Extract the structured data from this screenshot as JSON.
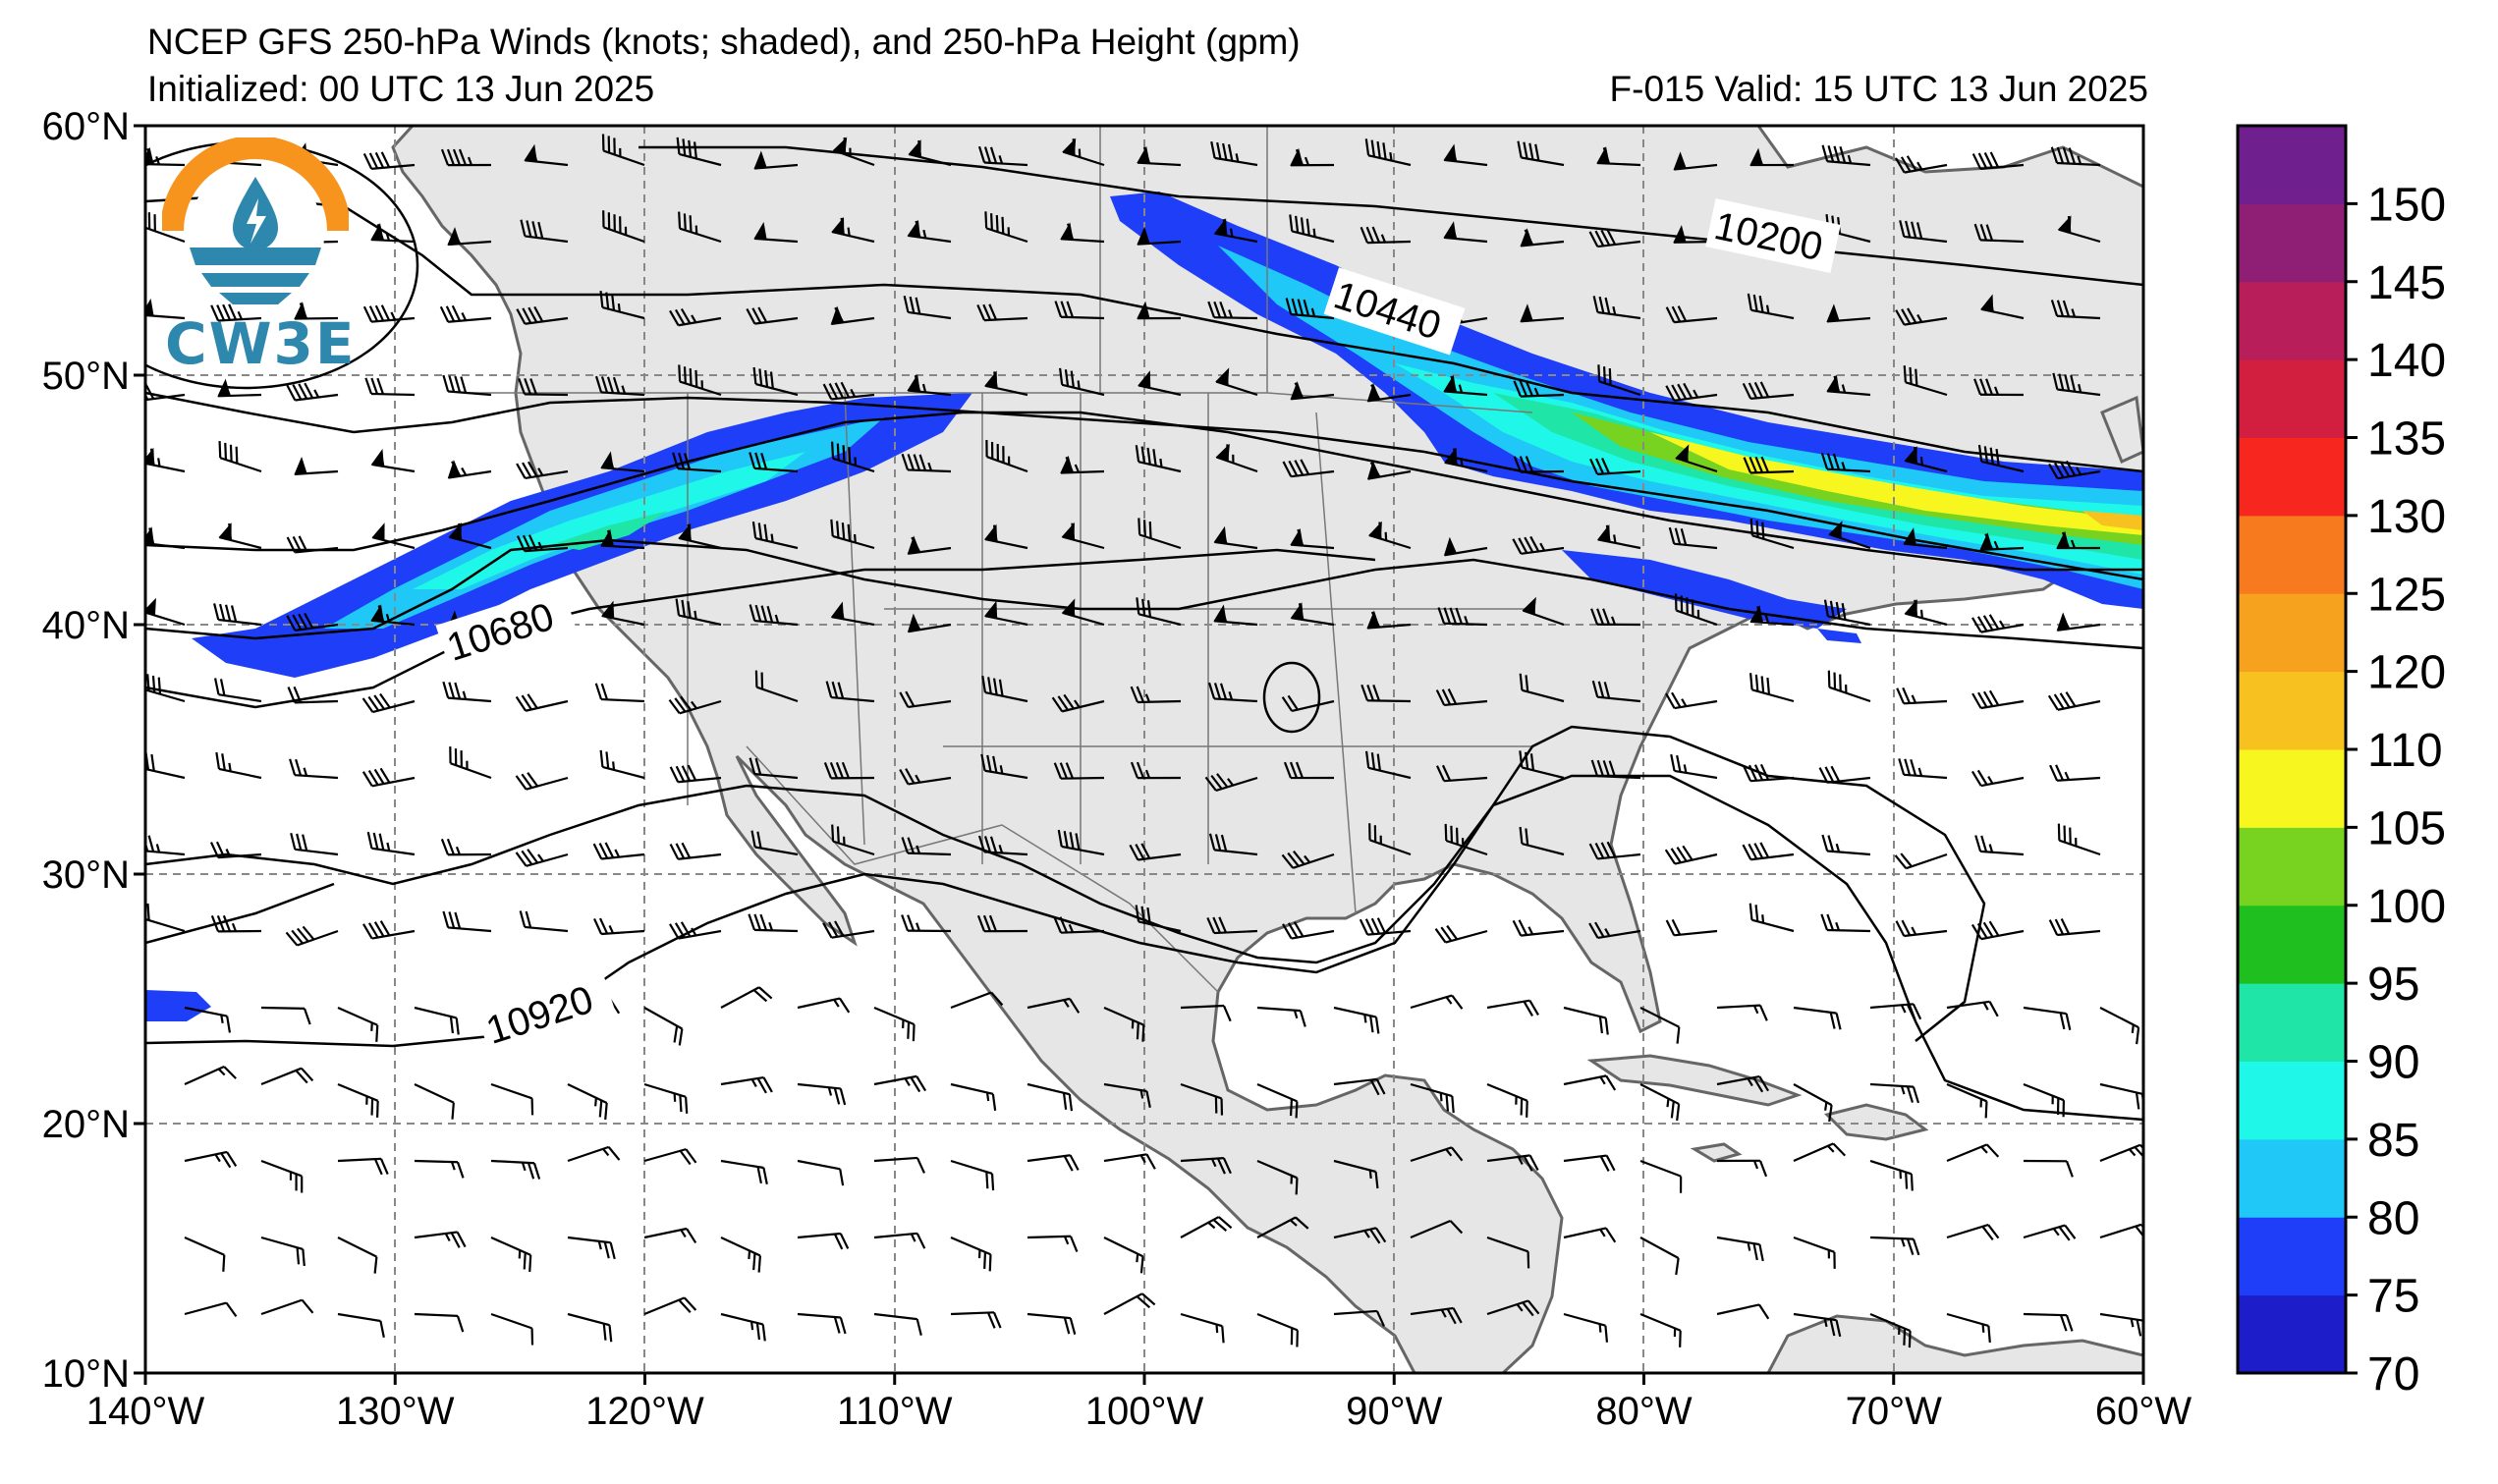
{
  "header": {
    "title": "NCEP GFS 250-hPa Winds (knots; shaded), and 250-hPa Height (gpm)",
    "init": "Initialized: 00 UTC 13 Jun 2025",
    "valid": "F-015  Valid: 15 UTC 13 Jun 2025"
  },
  "logo": {
    "text": "CW3E",
    "icon": "cw3e-sun-water-logo-icon"
  },
  "map": {
    "extent": {
      "lon": [
        -140,
        -60
      ],
      "lat": [
        10,
        60
      ]
    },
    "lon_ticks": [
      "140°W",
      "130°W",
      "120°W",
      "110°W",
      "100°W",
      "90°W",
      "80°W",
      "70°W",
      "60°W"
    ],
    "lat_ticks": [
      "10°N",
      "20°N",
      "30°N",
      "40°N",
      "50°N",
      "60°N"
    ],
    "land_color": "#e6e6e6",
    "height_contour_labels": [
      "10200",
      "10440",
      "10680",
      "10920"
    ]
  },
  "colorbar": {
    "colors": [
      "#1d1ec9",
      "#1f3ef7",
      "#1fc8f7",
      "#1ff7e8",
      "#1fe6a6",
      "#1fbf1f",
      "#77d31f",
      "#f7f71f",
      "#f7c21f",
      "#f7a21f",
      "#f77a1f",
      "#f7271f",
      "#d21f3f",
      "#b81f5a",
      "#8f1f75",
      "#701f8f"
    ],
    "tick_labels": [
      "70",
      "75",
      "80",
      "85",
      "90",
      "95",
      "100",
      "105",
      "110",
      "120",
      "125",
      "130",
      "135",
      "140",
      "145",
      "150"
    ]
  }
}
